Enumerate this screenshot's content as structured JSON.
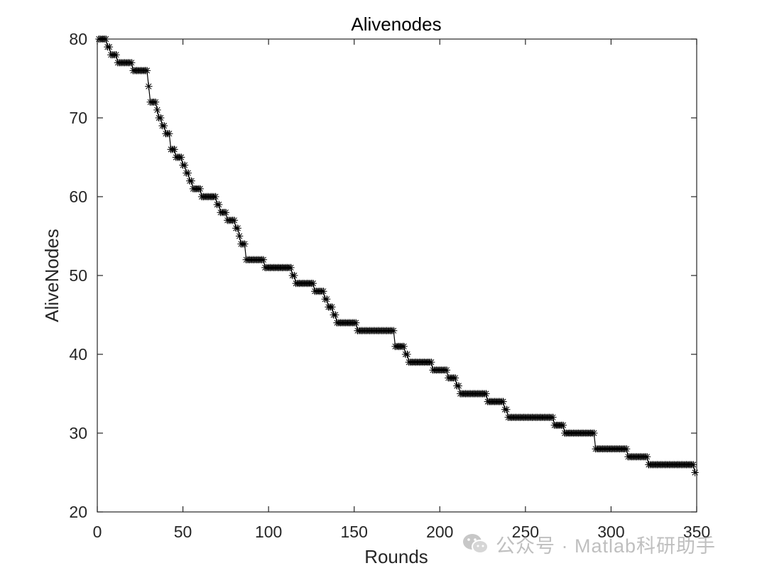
{
  "chart_data": {
    "type": "line",
    "title": "Alivenodes",
    "xlabel": "Rounds",
    "ylabel": "AliveNodes",
    "xlim": [
      0,
      350
    ],
    "ylim": [
      20,
      80
    ],
    "xticks": [
      "0",
      "50",
      "100",
      "150",
      "200",
      "250",
      "300",
      "350"
    ],
    "yticks": [
      "20",
      "30",
      "40",
      "50",
      "60",
      "70",
      "80"
    ],
    "grid": false,
    "marker": "asterisk",
    "line_color": "#000000",
    "series": [
      {
        "name": "",
        "step_points": [
          [
            1,
            80
          ],
          [
            5,
            80
          ],
          [
            6,
            79
          ],
          [
            8,
            78
          ],
          [
            12,
            77
          ],
          [
            20,
            77
          ],
          [
            21,
            76
          ],
          [
            29,
            76
          ],
          [
            30,
            74
          ],
          [
            31,
            72
          ],
          [
            34,
            72
          ],
          [
            35,
            71
          ],
          [
            36,
            70
          ],
          [
            38,
            69
          ],
          [
            40,
            68
          ],
          [
            43,
            66
          ],
          [
            45,
            66
          ],
          [
            46,
            65
          ],
          [
            49,
            65
          ],
          [
            50,
            64
          ],
          [
            52,
            63
          ],
          [
            54,
            62
          ],
          [
            56,
            61
          ],
          [
            60,
            61
          ],
          [
            61,
            60
          ],
          [
            69,
            60
          ],
          [
            70,
            59
          ],
          [
            72,
            58
          ],
          [
            76,
            57
          ],
          [
            80,
            57
          ],
          [
            81,
            56
          ],
          [
            83,
            55
          ],
          [
            84,
            54
          ],
          [
            86,
            54
          ],
          [
            87,
            52
          ],
          [
            97,
            52
          ],
          [
            98,
            51
          ],
          [
            113,
            51
          ],
          [
            114,
            50
          ],
          [
            116,
            49
          ],
          [
            126,
            49
          ],
          [
            127,
            48
          ],
          [
            132,
            48
          ],
          [
            133,
            47
          ],
          [
            135,
            46
          ],
          [
            138,
            45
          ],
          [
            140,
            44
          ],
          [
            150,
            44
          ],
          [
            152,
            43
          ],
          [
            173,
            43
          ],
          [
            174,
            41
          ],
          [
            179,
            41
          ],
          [
            180,
            40
          ],
          [
            182,
            39
          ],
          [
            195,
            39
          ],
          [
            196,
            38
          ],
          [
            204,
            38
          ],
          [
            205,
            37
          ],
          [
            209,
            37
          ],
          [
            210,
            36
          ],
          [
            212,
            35
          ],
          [
            226,
            35
          ],
          [
            228,
            34
          ],
          [
            236,
            34
          ],
          [
            238,
            33
          ],
          [
            240,
            32
          ],
          [
            265,
            32
          ],
          [
            267,
            31
          ],
          [
            271,
            31
          ],
          [
            273,
            30
          ],
          [
            290,
            30
          ],
          [
            291,
            28
          ],
          [
            309,
            28
          ],
          [
            310,
            27
          ],
          [
            320,
            27
          ],
          [
            322,
            26
          ],
          [
            348,
            26
          ],
          [
            349,
            25
          ]
        ]
      }
    ]
  },
  "watermark": {
    "icon": "wechat-icon",
    "text": "公众号 · Matlab科研助手"
  }
}
